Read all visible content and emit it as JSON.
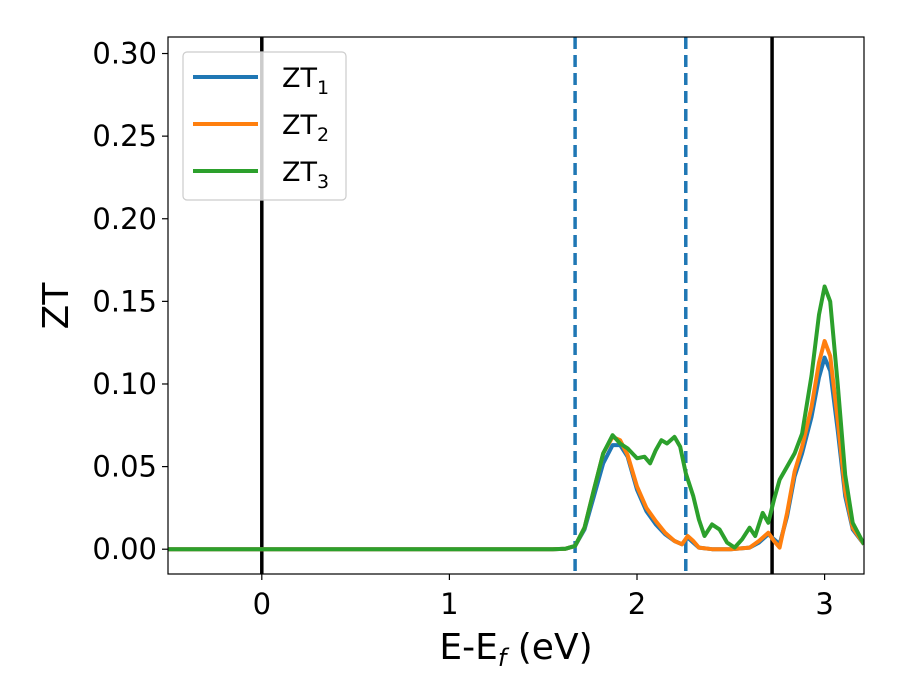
{
  "chart_data": {
    "type": "line",
    "xlabel": {
      "main": "E-E",
      "sub": "f",
      "suffix": " (eV)"
    },
    "ylabel": "ZT",
    "xlim": [
      -0.5,
      3.21
    ],
    "ylim": [
      -0.015,
      0.31
    ],
    "xticks": [
      {
        "value": 0,
        "label": "0"
      },
      {
        "value": 1,
        "label": "1"
      },
      {
        "value": 2,
        "label": "2"
      },
      {
        "value": 3,
        "label": "3"
      }
    ],
    "yticks": [
      {
        "value": 0.0,
        "label": "0.00"
      },
      {
        "value": 0.05,
        "label": "0.05"
      },
      {
        "value": 0.1,
        "label": "0.10"
      },
      {
        "value": 0.15,
        "label": "0.15"
      },
      {
        "value": 0.2,
        "label": "0.20"
      },
      {
        "value": 0.25,
        "label": "0.25"
      },
      {
        "value": 0.3,
        "label": "0.30"
      }
    ],
    "grid": false,
    "legend_position": "top-left",
    "vlines": [
      {
        "x": 0.0,
        "style": "solid",
        "color": "#000000"
      },
      {
        "x": 2.72,
        "style": "solid",
        "color": "#000000"
      },
      {
        "x": 1.67,
        "style": "dashed",
        "color": "#1f77b4"
      },
      {
        "x": 2.26,
        "style": "dashed",
        "color": "#1f77b4"
      }
    ],
    "series": [
      {
        "name": "ZT",
        "sub": "1",
        "color": "#1f77b4",
        "points": [
          [
            -0.5,
            0
          ],
          [
            1.55,
            0
          ],
          [
            1.62,
            0.0003
          ],
          [
            1.67,
            0.002
          ],
          [
            1.72,
            0.012
          ],
          [
            1.77,
            0.032
          ],
          [
            1.82,
            0.052
          ],
          [
            1.87,
            0.063
          ],
          [
            1.91,
            0.063
          ],
          [
            1.95,
            0.056
          ],
          [
            2.0,
            0.036
          ],
          [
            2.05,
            0.023
          ],
          [
            2.1,
            0.015
          ],
          [
            2.15,
            0.009
          ],
          [
            2.2,
            0.005
          ],
          [
            2.24,
            0.003
          ],
          [
            2.27,
            0.007
          ],
          [
            2.3,
            0.004
          ],
          [
            2.33,
            0.001
          ],
          [
            2.4,
            0.0
          ],
          [
            2.5,
            0.0
          ],
          [
            2.6,
            0.001
          ],
          [
            2.65,
            0.004
          ],
          [
            2.7,
            0.009
          ],
          [
            2.73,
            0.006
          ],
          [
            2.76,
            0.003
          ],
          [
            2.8,
            0.02
          ],
          [
            2.84,
            0.044
          ],
          [
            2.88,
            0.058
          ],
          [
            2.93,
            0.08
          ],
          [
            2.97,
            0.104
          ],
          [
            3.0,
            0.116
          ],
          [
            3.03,
            0.108
          ],
          [
            3.07,
            0.072
          ],
          [
            3.11,
            0.032
          ],
          [
            3.15,
            0.012
          ],
          [
            3.21,
            0.003
          ]
        ]
      },
      {
        "name": "ZT",
        "sub": "2",
        "color": "#ff7f0e",
        "points": [
          [
            -0.5,
            0
          ],
          [
            1.55,
            0
          ],
          [
            1.62,
            0.0003
          ],
          [
            1.67,
            0.002
          ],
          [
            1.72,
            0.013
          ],
          [
            1.77,
            0.036
          ],
          [
            1.82,
            0.058
          ],
          [
            1.87,
            0.068
          ],
          [
            1.91,
            0.066
          ],
          [
            1.95,
            0.057
          ],
          [
            2.0,
            0.038
          ],
          [
            2.05,
            0.025
          ],
          [
            2.1,
            0.017
          ],
          [
            2.15,
            0.01
          ],
          [
            2.2,
            0.005
          ],
          [
            2.24,
            0.003
          ],
          [
            2.27,
            0.008
          ],
          [
            2.3,
            0.005
          ],
          [
            2.33,
            0.001
          ],
          [
            2.4,
            0.0
          ],
          [
            2.5,
            0.0
          ],
          [
            2.6,
            0.001
          ],
          [
            2.65,
            0.005
          ],
          [
            2.7,
            0.01
          ],
          [
            2.73,
            0.005
          ],
          [
            2.76,
            0.001
          ],
          [
            2.8,
            0.022
          ],
          [
            2.84,
            0.047
          ],
          [
            2.88,
            0.062
          ],
          [
            2.93,
            0.086
          ],
          [
            2.97,
            0.113
          ],
          [
            3.0,
            0.126
          ],
          [
            3.03,
            0.117
          ],
          [
            3.07,
            0.078
          ],
          [
            3.11,
            0.035
          ],
          [
            3.15,
            0.013
          ],
          [
            3.21,
            0.003
          ]
        ]
      },
      {
        "name": "ZT",
        "sub": "3",
        "color": "#2ca02c",
        "points": [
          [
            -0.5,
            0
          ],
          [
            1.55,
            0
          ],
          [
            1.62,
            0.0003
          ],
          [
            1.67,
            0.002
          ],
          [
            1.72,
            0.013
          ],
          [
            1.77,
            0.036
          ],
          [
            1.82,
            0.058
          ],
          [
            1.87,
            0.069
          ],
          [
            1.91,
            0.064
          ],
          [
            1.95,
            0.061
          ],
          [
            2.0,
            0.055
          ],
          [
            2.04,
            0.056
          ],
          [
            2.07,
            0.052
          ],
          [
            2.1,
            0.06
          ],
          [
            2.13,
            0.066
          ],
          [
            2.16,
            0.064
          ],
          [
            2.2,
            0.068
          ],
          [
            2.23,
            0.062
          ],
          [
            2.26,
            0.046
          ],
          [
            2.3,
            0.032
          ],
          [
            2.33,
            0.018
          ],
          [
            2.36,
            0.008
          ],
          [
            2.4,
            0.015
          ],
          [
            2.44,
            0.012
          ],
          [
            2.48,
            0.004
          ],
          [
            2.52,
            0.001
          ],
          [
            2.56,
            0.006
          ],
          [
            2.6,
            0.013
          ],
          [
            2.63,
            0.008
          ],
          [
            2.67,
            0.022
          ],
          [
            2.7,
            0.016
          ],
          [
            2.73,
            0.03
          ],
          [
            2.76,
            0.042
          ],
          [
            2.8,
            0.05
          ],
          [
            2.84,
            0.058
          ],
          [
            2.88,
            0.07
          ],
          [
            2.93,
            0.105
          ],
          [
            2.97,
            0.142
          ],
          [
            3.0,
            0.159
          ],
          [
            3.03,
            0.15
          ],
          [
            3.07,
            0.1
          ],
          [
            3.11,
            0.045
          ],
          [
            3.15,
            0.016
          ],
          [
            3.21,
            0.003
          ]
        ]
      }
    ]
  }
}
